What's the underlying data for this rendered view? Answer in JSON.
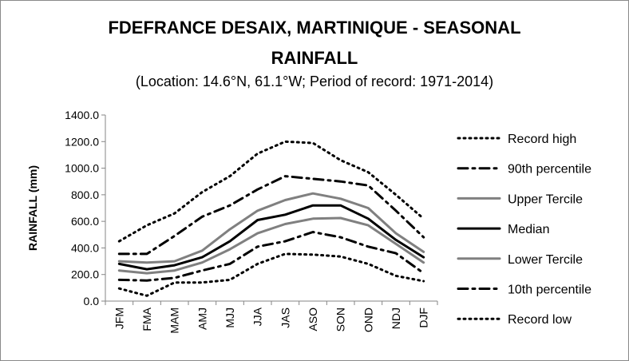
{
  "chart_data": {
    "type": "line",
    "title": "FDEFRANCE DESAIX, MARTINIQUE - SEASONAL",
    "title_line2": "RAINFALL",
    "subtitle": "(Location: 14.6°N, 61.1°W; Period of record: 1971-2014)",
    "ylabel": "RAINFALL (mm)",
    "xlabel": "",
    "ylim": [
      0,
      1400
    ],
    "yticks": [
      "0.0",
      "200.0",
      "400.0",
      "600.0",
      "800.0",
      "1000.0",
      "1200.0",
      "1400.0"
    ],
    "grid": false,
    "legend_position": "right",
    "categories": [
      "JFM",
      "FMA",
      "MAM",
      "AMJ",
      "MJJ",
      "JJA",
      "JAS",
      "ASO",
      "SON",
      "OND",
      "NDJ",
      "DJF"
    ],
    "series": [
      {
        "name": "Record high",
        "style": "dotted",
        "color": "#000000",
        "values": [
          450,
          570,
          660,
          820,
          940,
          1110,
          1200,
          1190,
          1060,
          970,
          800,
          620
        ]
      },
      {
        "name": "90th percentile",
        "style": "dashdot",
        "color": "#000000",
        "values": [
          355,
          355,
          490,
          635,
          720,
          840,
          940,
          920,
          900,
          870,
          680,
          480
        ]
      },
      {
        "name": "Upper Tercile",
        "style": "solid",
        "color": "#808080",
        "values": [
          300,
          290,
          300,
          380,
          540,
          680,
          760,
          810,
          770,
          700,
          510,
          370
        ]
      },
      {
        "name": "Median",
        "style": "solid",
        "color": "#000000",
        "values": [
          280,
          240,
          270,
          330,
          450,
          610,
          650,
          720,
          720,
          620,
          460,
          330
        ]
      },
      {
        "name": "Lower Tercile",
        "style": "solid",
        "color": "#808080",
        "values": [
          230,
          210,
          230,
          290,
          390,
          510,
          580,
          620,
          625,
          570,
          430,
          290
        ]
      },
      {
        "name": "10th percentile",
        "style": "dashdot",
        "color": "#000000",
        "values": [
          160,
          155,
          175,
          230,
          280,
          410,
          450,
          520,
          480,
          410,
          360,
          210
        ]
      },
      {
        "name": "Record low",
        "style": "dotted",
        "color": "#000000",
        "values": [
          95,
          40,
          140,
          140,
          160,
          280,
          355,
          350,
          335,
          280,
          190,
          150
        ]
      }
    ]
  }
}
